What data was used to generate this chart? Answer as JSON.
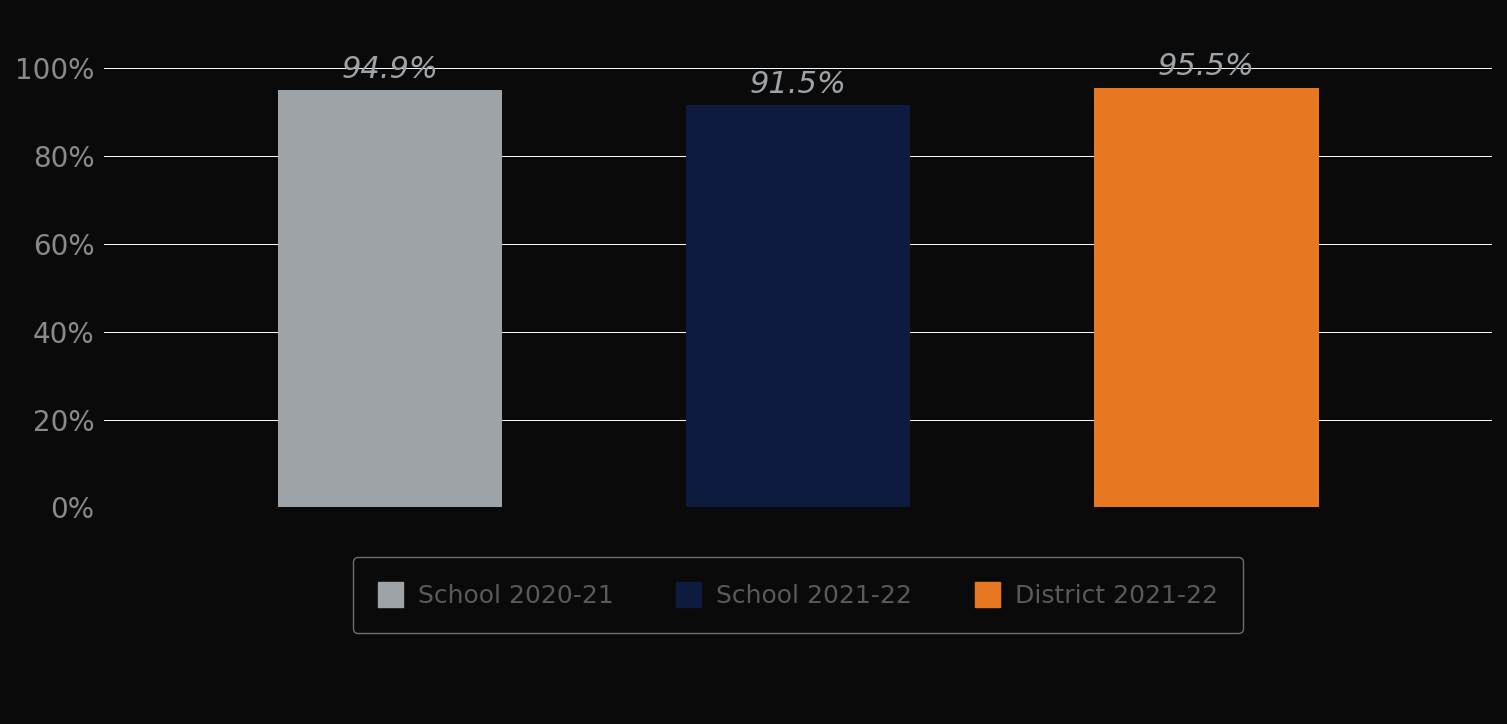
{
  "categories": [
    "School 2020-21",
    "School 2021-22",
    "District 2021-22"
  ],
  "values": [
    94.9,
    91.5,
    95.5
  ],
  "bar_colors": [
    "#9EA3A8",
    "#0D1B3E",
    "#E87722"
  ],
  "label_color": "#9EA3A8",
  "background_color": "#0a0a0a",
  "grid_color": "#ffffff",
  "text_color": "#8a8a8a",
  "legend_text_color": "#5a5a5a",
  "ytick_labels": [
    "0%",
    "20%",
    "40%",
    "60%",
    "80%",
    "100%"
  ],
  "ytick_values": [
    0,
    20,
    40,
    60,
    80,
    100
  ],
  "ylim": [
    0,
    112
  ],
  "bar_labels": [
    "94.9%",
    "91.5%",
    "95.5%"
  ],
  "legend_labels": [
    "School 2020-21",
    "School 2021-22",
    "District 2021-22"
  ],
  "legend_colors": [
    "#9EA3A8",
    "#0D1B3E",
    "#E87722"
  ],
  "bar_width": 0.55,
  "x_positions": [
    1,
    2,
    3
  ],
  "xlim": [
    0.3,
    3.7
  ],
  "label_fontsize": 22,
  "tick_fontsize": 20,
  "legend_fontsize": 18,
  "legend_edge_color": "#888888"
}
